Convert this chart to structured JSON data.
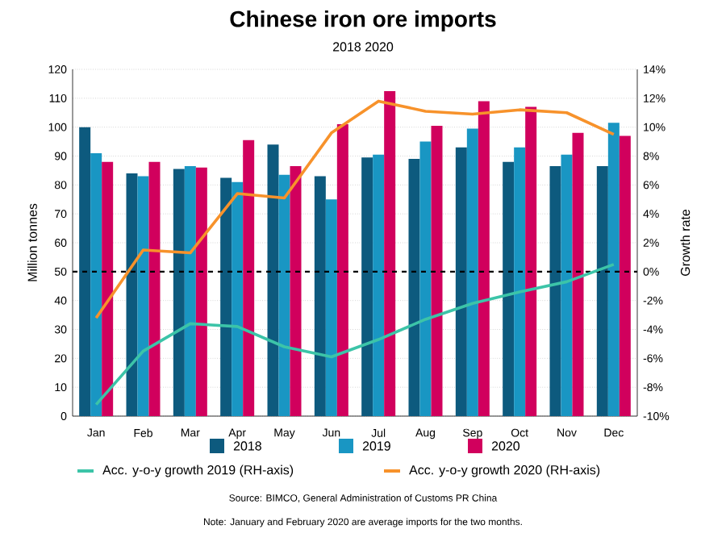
{
  "chart_data": {
    "type": "bar",
    "title": "Chinese iron ore imports",
    "subtitle": "2018 2020",
    "categories": [
      "Jan",
      "Feb",
      "Mar",
      "Apr",
      "May",
      "Jun",
      "Jul",
      "Aug",
      "Sep",
      "Oct",
      "Nov",
      "Dec"
    ],
    "ylabel": "Million tonnes",
    "y2label": "Growth rate",
    "ylim": [
      0,
      120
    ],
    "yticks": [
      0,
      10,
      20,
      30,
      40,
      50,
      60,
      70,
      80,
      90,
      100,
      110,
      120
    ],
    "y2lim": [
      -10,
      14
    ],
    "y2ticks": [
      {
        "value": -10,
        "label": "-10%"
      },
      {
        "value": -8,
        "label": "-8%"
      },
      {
        "value": -6,
        "label": "-6%"
      },
      {
        "value": -4,
        "label": "-4%"
      },
      {
        "value": -2,
        "label": "-2%"
      },
      {
        "value": 0,
        "label": "0%"
      },
      {
        "value": 2,
        "label": "2%"
      },
      {
        "value": 4,
        "label": "4%"
      },
      {
        "value": 6,
        "label": "6%"
      },
      {
        "value": 8,
        "label": "8%"
      },
      {
        "value": 10,
        "label": "10%"
      },
      {
        "value": 12,
        "label": "12%"
      },
      {
        "value": 14,
        "label": "14%"
      }
    ],
    "series": [
      {
        "name": "2018",
        "color": "#0d5a7e",
        "values": [
          100,
          84,
          85.5,
          82.5,
          94,
          83,
          89.5,
          89,
          93,
          88,
          86.5,
          86.5
        ]
      },
      {
        "name": "2019",
        "color": "#1996c3",
        "values": [
          91,
          83,
          86.5,
          81,
          83.5,
          75,
          90.5,
          95,
          99.5,
          93,
          90.5,
          101.5
        ]
      },
      {
        "name": "2020",
        "color": "#d1005d",
        "values": [
          88,
          88,
          86,
          95.5,
          86.5,
          101,
          112.5,
          100.5,
          109,
          107,
          98,
          97
        ]
      },
      {
        "name": "Acc. y-o-y growth 2019 (RH-axis)",
        "type": "line",
        "axis": "y2",
        "color": "#3cc4a8",
        "values": [
          -9.2,
          -5.5,
          -3.6,
          -3.8,
          -5.2,
          -5.9,
          -4.7,
          -3.3,
          -2.2,
          -1.4,
          -0.7,
          0.5
        ]
      },
      {
        "name": "Acc. y-o-y growth 2020 (RH-axis)",
        "type": "line",
        "axis": "y2",
        "color": "#f7922b",
        "values": [
          -3.2,
          1.5,
          1.3,
          5.4,
          5.1,
          9.6,
          11.8,
          11.1,
          10.9,
          11.2,
          11.0,
          9.5
        ]
      }
    ],
    "ref_lines": [
      {
        "axis": "y",
        "value": 50,
        "color": "#000000",
        "line_style": "dashed"
      }
    ],
    "grid": "y",
    "legend": "bottom",
    "annotations": [
      "Source: BIMCO, General Administration of Customs PR China",
      "Note: January and February 2020 are average imports for the two months."
    ]
  }
}
